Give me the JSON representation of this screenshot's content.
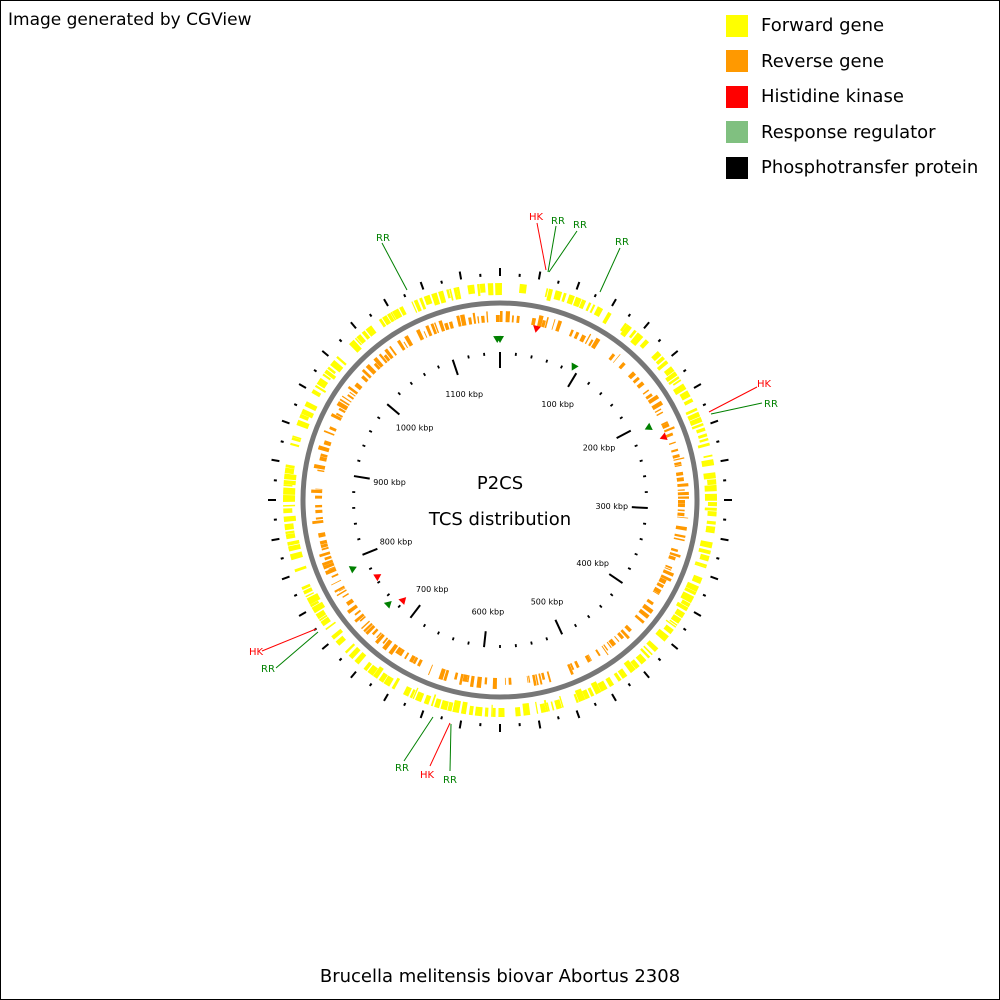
{
  "credit": "Image generated by CGView",
  "caption": "Brucella melitensis biovar Abortus 2308",
  "center": {
    "line1": "P2CS",
    "line2": "TCS distribution"
  },
  "legend": [
    {
      "label": "Forward gene",
      "color": "#ffff00"
    },
    {
      "label": "Reverse gene",
      "color": "#ff9900"
    },
    {
      "label": "Histidine kinase",
      "color": "#ff0000"
    },
    {
      "label": "Response regulator",
      "color": "#80c080"
    },
    {
      "label": "Phosphotransfer protein",
      "color": "#000000"
    }
  ],
  "genome": {
    "length_kbp": 1160,
    "tick_labels": [
      {
        "kbp": 100,
        "label": "100 kbp"
      },
      {
        "kbp": 200,
        "label": "200 kbp"
      },
      {
        "kbp": 300,
        "label": "300 kbp"
      },
      {
        "kbp": 400,
        "label": "400 kbp"
      },
      {
        "kbp": 500,
        "label": "500 kbp"
      },
      {
        "kbp": 600,
        "label": "600 kbp"
      },
      {
        "kbp": 700,
        "label": "700 kbp"
      },
      {
        "kbp": 800,
        "label": "800 kbp"
      },
      {
        "kbp": 900,
        "label": "900 kbp"
      },
      {
        "kbp": 1000,
        "label": "1000 kbp"
      },
      {
        "kbp": 1100,
        "label": "1100 kbp"
      }
    ]
  },
  "feature_labels": [
    {
      "text": "HK",
      "kind": "hk",
      "color": "#ff0000"
    },
    {
      "text": "RR",
      "kind": "rr",
      "color": "#008000"
    },
    {
      "text": "RR",
      "kind": "rr",
      "color": "#008000"
    },
    {
      "text": "RR",
      "kind": "rr",
      "color": "#008000"
    },
    {
      "text": "HK",
      "kind": "hk",
      "color": "#ff0000"
    },
    {
      "text": "RR",
      "kind": "rr",
      "color": "#008000"
    },
    {
      "text": "HK",
      "kind": "hk",
      "color": "#ff0000"
    },
    {
      "text": "RR",
      "kind": "rr",
      "color": "#008000"
    },
    {
      "text": "RR",
      "kind": "rr",
      "color": "#008000"
    },
    {
      "text": "HK",
      "kind": "hk",
      "color": "#ff0000"
    },
    {
      "text": "RR",
      "kind": "rr",
      "color": "#008000"
    },
    {
      "text": "RR",
      "kind": "rr",
      "color": "#008000"
    }
  ],
  "markers": [
    {
      "kind": "hk",
      "color": "#ff0000"
    },
    {
      "kind": "rr",
      "color": "#008000"
    },
    {
      "kind": "rr",
      "color": "#008000"
    },
    {
      "kind": "rr",
      "color": "#008000"
    },
    {
      "kind": "rr",
      "color": "#008000"
    },
    {
      "kind": "hk",
      "color": "#ff0000"
    },
    {
      "kind": "rr",
      "color": "#008000"
    },
    {
      "kind": "hk",
      "color": "#ff0000"
    },
    {
      "kind": "hk",
      "color": "#ff0000"
    },
    {
      "kind": "rr",
      "color": "#008000"
    }
  ]
}
